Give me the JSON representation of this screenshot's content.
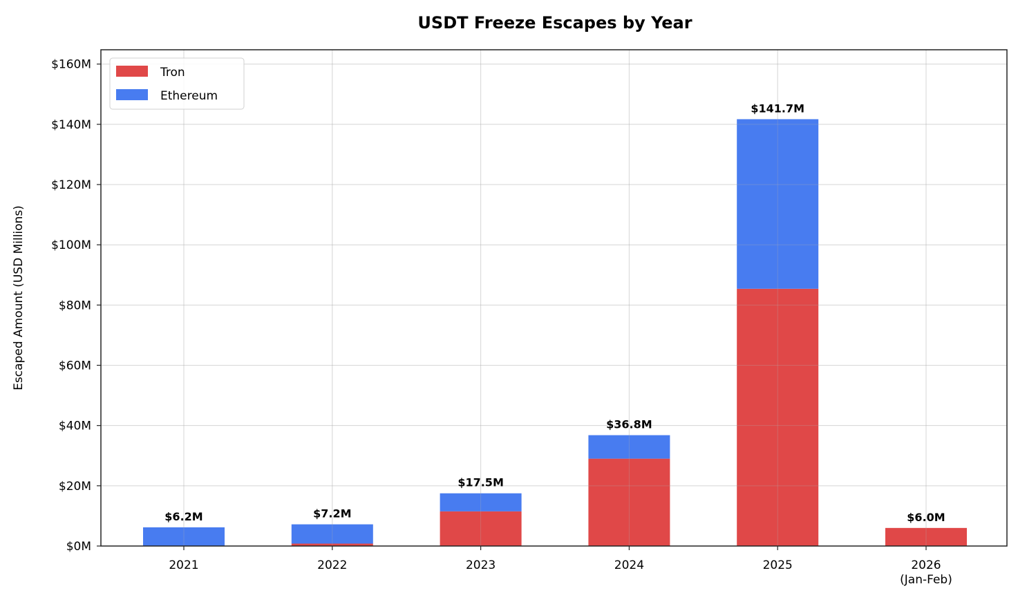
{
  "chart_data": {
    "type": "bar",
    "stacked": true,
    "title": "USDT Freeze Escapes by Year",
    "xlabel": "",
    "ylabel": "Escaped Amount (USD Millions)",
    "categories": [
      "2021",
      "2022",
      "2023",
      "2024",
      "2025",
      "2026\n(Jan-Feb)"
    ],
    "category_lines": [
      [
        "2021"
      ],
      [
        "2022"
      ],
      [
        "2023"
      ],
      [
        "2024"
      ],
      [
        "2025"
      ],
      [
        "2026",
        "(Jan-Feb)"
      ]
    ],
    "series": [
      {
        "name": "Tron",
        "color": "#e04848",
        "values": [
          0,
          0.8,
          11.5,
          29.0,
          85.4,
          6.0
        ]
      },
      {
        "name": "Ethereum",
        "color": "#487cf0",
        "values": [
          6.2,
          6.4,
          6.0,
          7.8,
          56.3,
          0
        ]
      }
    ],
    "totals_labels": [
      "$6.2M",
      "$7.2M",
      "$17.5M",
      "$36.8M",
      "$141.7M",
      "$6.0M"
    ],
    "totals": [
      6.2,
      7.2,
      17.5,
      36.8,
      141.7,
      6.0
    ],
    "ylim": [
      0,
      165
    ],
    "yticks": [
      0,
      20,
      40,
      60,
      80,
      100,
      120,
      140,
      160
    ],
    "ytick_labels": [
      "$0M",
      "$20M",
      "$40M",
      "$60M",
      "$80M",
      "$100M",
      "$120M",
      "$140M",
      "$160M"
    ],
    "grid": true,
    "legend_position": "upper left"
  }
}
